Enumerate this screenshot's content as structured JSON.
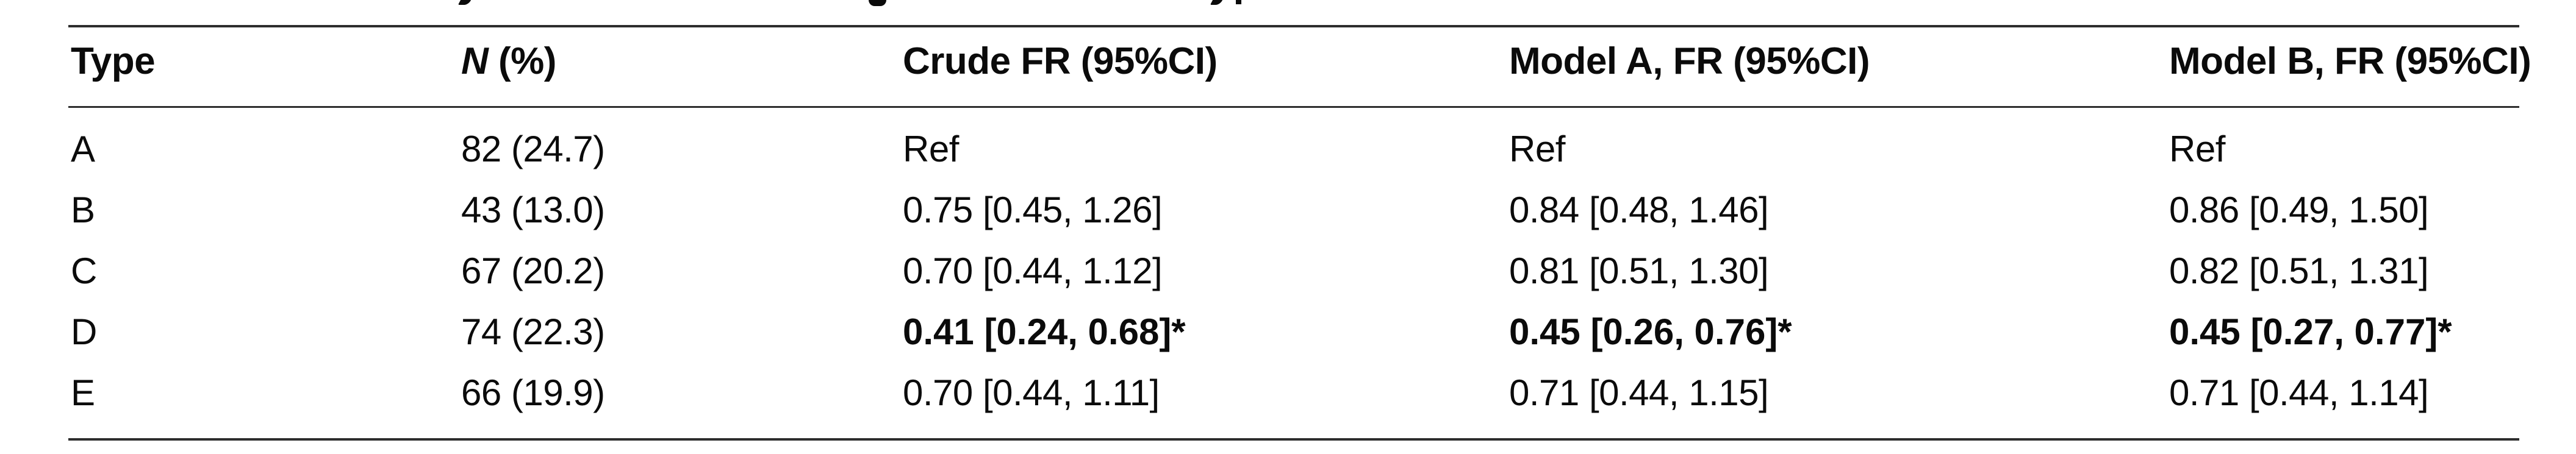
{
  "table": {
    "header": {
      "col1": "Type",
      "col2_italic": "N",
      "col2_rest": " (%)",
      "col3": "Crude FR (95%CI)",
      "col4": "Model A, FR (95%CI)",
      "col5": "Model B, FR (95%CI)"
    },
    "rows": [
      {
        "type": "A",
        "n_pct": "82 (24.7)",
        "crude_fr": "Ref",
        "model_a_fr": "Ref",
        "model_b_fr": "Ref",
        "significant": false
      },
      {
        "type": "B",
        "n_pct": "43 (13.0)",
        "crude_fr": "0.75 [0.45, 1.26]",
        "model_a_fr": "0.84 [0.48, 1.46]",
        "model_b_fr": "0.86 [0.49, 1.50]",
        "significant": false
      },
      {
        "type": "C",
        "n_pct": "67 (20.2)",
        "crude_fr": "0.70 [0.44, 1.12]",
        "model_a_fr": "0.81 [0.51, 1.30]",
        "model_b_fr": "0.82 [0.51, 1.31]",
        "significant": false
      },
      {
        "type": "D",
        "n_pct": "74 (22.3)",
        "crude_fr": "0.41 [0.24, 0.68]*",
        "model_a_fr": "0.45 [0.26, 0.76]*",
        "model_b_fr": "0.45 [0.27, 0.77]*",
        "significant": true
      },
      {
        "type": "E",
        "n_pct": "66 (19.9)",
        "crude_fr": "0.70 [0.44, 1.11]",
        "model_a_fr": "0.71 [0.44, 1.15]",
        "model_b_fr": "0.71 [0.44, 1.14]",
        "significant": false
      }
    ],
    "footnote_marker": "*"
  },
  "chart_data": {
    "type": "table",
    "columns": [
      "Type",
      "N (%)",
      "Crude FR (95%CI)",
      "Model A, FR (95%CI)",
      "Model B, FR (95%CI)"
    ],
    "rows": [
      [
        "A",
        "82 (24.7)",
        "Ref",
        "Ref",
        "Ref"
      ],
      [
        "B",
        "43 (13.0)",
        "0.75 [0.45, 1.26]",
        "0.84 [0.48, 1.46]",
        "0.86 [0.49, 1.50]"
      ],
      [
        "C",
        "67 (20.2)",
        "0.70 [0.44, 1.12]",
        "0.81 [0.51, 1.30]",
        "0.82 [0.51, 1.31]"
      ],
      [
        "D",
        "74 (22.3)",
        "0.41 [0.24, 0.68]*",
        "0.45 [0.26, 0.76]*",
        "0.45 [0.27, 0.77]*"
      ],
      [
        "E",
        "66 (19.9)",
        "0.70 [0.44, 1.11]",
        "0.71 [0.44, 1.15]",
        "0.71 [0.44, 1.14]"
      ]
    ],
    "bold_rows": [
      "D"
    ],
    "layout": "three-rule journal table (top, under-header, bottom)"
  },
  "colors": {
    "background": "#ffffff",
    "text": "#0b0b0b",
    "rule": "#2d2d2d"
  }
}
